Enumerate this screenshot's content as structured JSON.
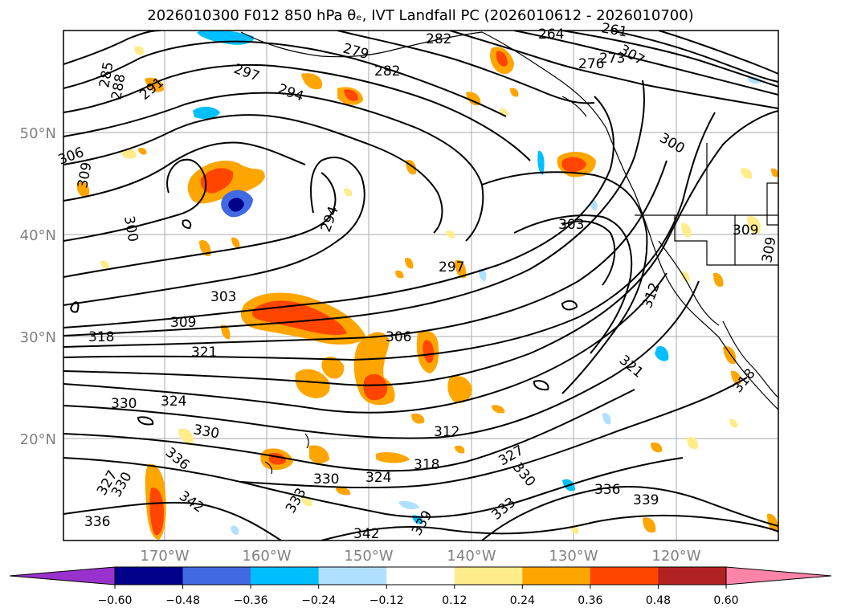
{
  "title": "2026010300 F012 850 hPa θₑ, IVT Landfall PC (2026010612 - 2026010700)",
  "map": {
    "lat_labels": [
      "50°N",
      "40°N",
      "30°N",
      "20°N"
    ],
    "lon_labels": [
      "170°W",
      "160°W",
      "150°W",
      "140°W",
      "130°W",
      "120°W"
    ],
    "gridlines": true,
    "contour_labels": [
      "285",
      "288",
      "291",
      "294",
      "297",
      "300",
      "303",
      "306",
      "309",
      "312",
      "318",
      "321",
      "324",
      "327",
      "330",
      "333",
      "336",
      "339",
      "342",
      "282",
      "279",
      "276",
      "273",
      "264",
      "261",
      "307"
    ]
  },
  "colorbar": {
    "ticks": [
      "−0.60",
      "−0.48",
      "−0.36",
      "−0.24",
      "−0.12",
      "0.12",
      "0.24",
      "0.36",
      "0.48",
      "0.60"
    ],
    "colors": [
      "#9932cc",
      "#00008b",
      "#4169e1",
      "#00bfff",
      "#b0e0ff",
      "#ffffff",
      "#ffec8b",
      "#ffa500",
      "#ff4500",
      "#b22222",
      "#ff85a8"
    ],
    "extend": "both"
  }
}
